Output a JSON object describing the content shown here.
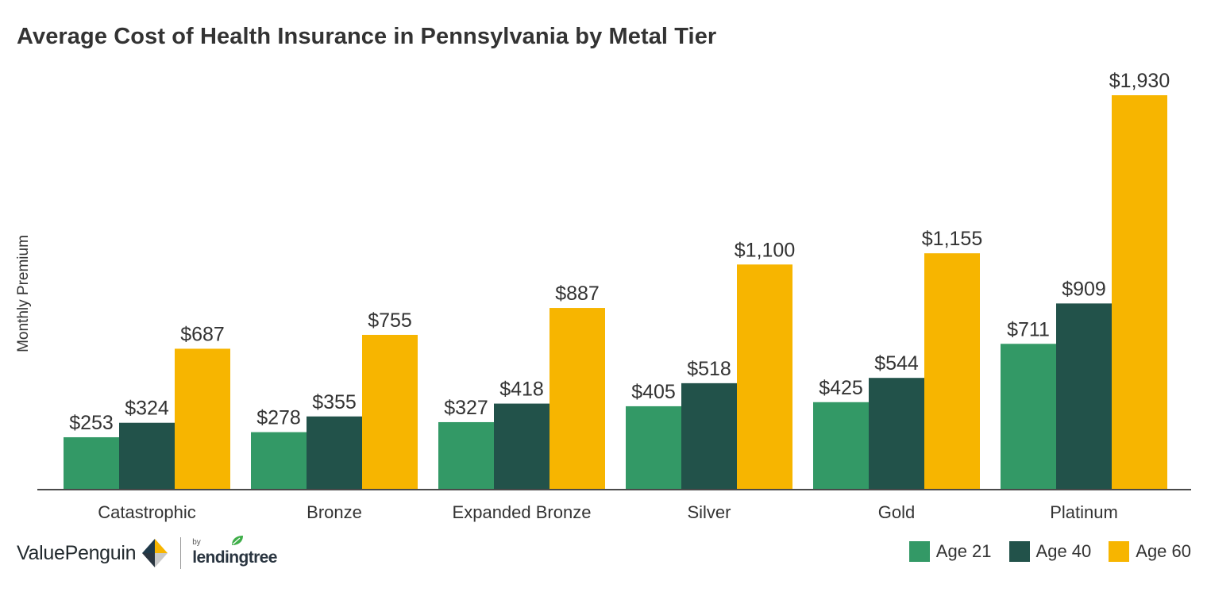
{
  "chart_data": {
    "type": "bar",
    "title": "Average Cost of Health Insurance in Pennsylvania by Metal Tier",
    "ylabel": "Monthly Premium",
    "xlabel": "",
    "categories": [
      "Catastrophic",
      "Bronze",
      "Expanded Bronze",
      "Silver",
      "Gold",
      "Platinum"
    ],
    "series": [
      {
        "name": "Age 21",
        "color": "#339966",
        "values": [
          253,
          278,
          327,
          405,
          425,
          711
        ],
        "labels": [
          "$253",
          "$278",
          "$327",
          "$405",
          "$425",
          "$711"
        ]
      },
      {
        "name": "Age 40",
        "color": "#22524a",
        "values": [
          324,
          355,
          418,
          518,
          544,
          909
        ],
        "labels": [
          "$324",
          "$355",
          "$418",
          "$518",
          "$544",
          "$909"
        ]
      },
      {
        "name": "Age 60",
        "color": "#f7b500",
        "values": [
          687,
          755,
          887,
          1100,
          1155,
          1930
        ],
        "labels": [
          "$687",
          "$755",
          "$887",
          "$1,100",
          "$1,155",
          "$1,930"
        ]
      }
    ],
    "ylim": [
      0,
      2100
    ],
    "grid": false,
    "legend_position": "bottom-right"
  },
  "branding": {
    "valuepenguin": "ValuePenguin",
    "by": "by",
    "lendingtree": "lendingtree"
  }
}
